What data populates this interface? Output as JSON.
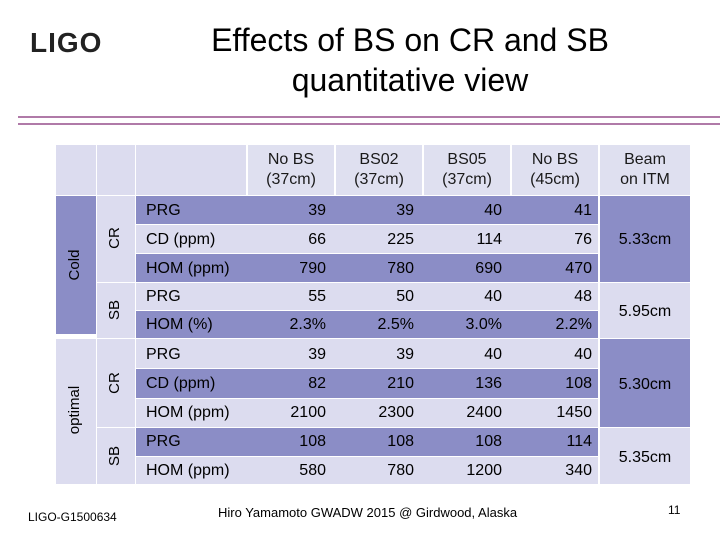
{
  "logo_text": "LIGO",
  "title_line1": "Effects of BS on CR and SB",
  "title_line2": "quantitative view",
  "columns": {
    "c1_line1": "No BS",
    "c1_line2": "(37cm)",
    "c2_line1": "BS02",
    "c2_line2": "(37cm)",
    "c3_line1": "BS05",
    "c3_line2": "(37cm)",
    "c4_line1": "No BS",
    "c4_line2": "(45cm)",
    "c5_line1": "Beam",
    "c5_line2": "on ITM"
  },
  "groups": {
    "cold": "Cold",
    "optimal": "optimal",
    "cold_cr": "CR",
    "cold_sb": "SB",
    "optimal_cr": "CR",
    "optimal_sb": "SB"
  },
  "rows": [
    {
      "label": "PRG",
      "v": [
        "39",
        "39",
        "40",
        "41"
      ]
    },
    {
      "label": "CD (ppm)",
      "v": [
        "66",
        "225",
        "114",
        "76"
      ]
    },
    {
      "label": "HOM (ppm)",
      "v": [
        "790",
        "780",
        "690",
        "470"
      ]
    },
    {
      "label": "PRG",
      "v": [
        "55",
        "50",
        "40",
        "48"
      ]
    },
    {
      "label": "HOM (%)",
      "v": [
        "2.3%",
        "2.5%",
        "3.0%",
        "2.2%"
      ]
    },
    {
      "label": "PRG",
      "v": [
        "39",
        "39",
        "40",
        "40"
      ]
    },
    {
      "label": "CD (ppm)",
      "v": [
        "82",
        "210",
        "136",
        "108"
      ]
    },
    {
      "label": "HOM (ppm)",
      "v": [
        "2100",
        "2300",
        "2400",
        "1450"
      ]
    },
    {
      "label": "PRG",
      "v": [
        "108",
        "108",
        "108",
        "114"
      ]
    },
    {
      "label": "HOM (ppm)",
      "v": [
        "580",
        "780",
        "1200",
        "340"
      ]
    }
  ],
  "beam_on_itm": [
    "5.33cm",
    "5.95cm",
    "5.30cm",
    "5.35cm"
  ],
  "footer": {
    "doc_id": "LIGO-G1500634",
    "credit": "Hiro Yamamoto   GWADW 2015 @ Girdwood, Alaska",
    "page": "11"
  },
  "colors": {
    "band_dark": "#8b8dc6",
    "band_light": "#dcdcef",
    "rule": "#b07aa8"
  }
}
